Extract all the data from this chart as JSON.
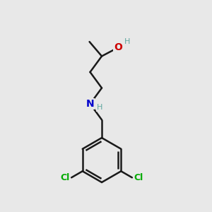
{
  "background_color": "#e8e8e8",
  "bond_color": "#1a1a1a",
  "bond_width": 1.8,
  "atom_colors": {
    "N": "#0000cc",
    "O": "#cc0000",
    "Cl": "#00aa00",
    "H_OH": "#5fa8a0",
    "H_N": "#5fa8a0"
  },
  "fig_width": 3.0,
  "fig_height": 3.0,
  "dpi": 100
}
